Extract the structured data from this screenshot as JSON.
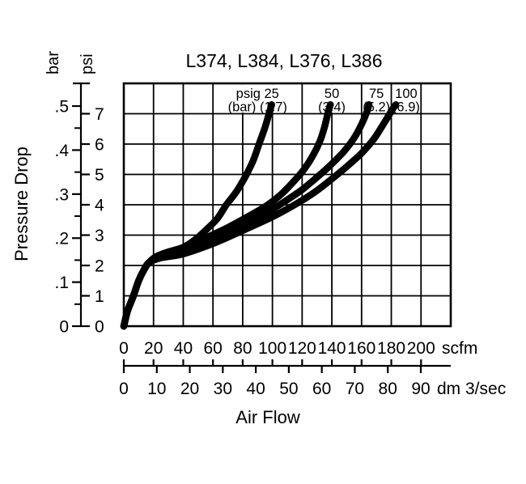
{
  "chart_data": {
    "type": "line",
    "title": "L374, L384, L376, L386",
    "x_axis": {
      "label": "Air Flow",
      "scales": [
        {
          "unit": "scfm",
          "ticks": [
            0,
            20,
            40,
            60,
            80,
            100,
            120,
            140,
            160,
            180,
            200
          ],
          "axis_max": 220
        },
        {
          "unit": "dm 3/sec",
          "ticks": [
            0,
            10,
            20,
            30,
            40,
            50,
            60,
            70,
            80,
            90
          ]
        }
      ]
    },
    "y_axis": {
      "label": "Pressure Drop",
      "scales": [
        {
          "unit": "bar",
          "tick_labels": [
            "0",
            ".1",
            ".2",
            ".3",
            ".4",
            ".5"
          ],
          "tick_values": [
            0,
            0.1,
            0.2,
            0.3,
            0.4,
            0.5
          ],
          "minor_tick_values": [
            0.05,
            0.15,
            0.25,
            0.35,
            0.45
          ],
          "axis_max": 0.55
        },
        {
          "unit": "psi",
          "tick_labels": [
            "0",
            "1",
            "2",
            "3",
            "4",
            "5",
            "6",
            "7"
          ],
          "tick_values": [
            0,
            1,
            2,
            3,
            4,
            5,
            6,
            7
          ],
          "axis_max": 8
        }
      ]
    },
    "legend": {
      "cells": [
        {
          "line1": "psig 25",
          "line2": "(bar) (1.7)",
          "span_scfm": [
            60,
            120
          ]
        },
        {
          "line1": "50",
          "line2": "(3.4)",
          "span_scfm": [
            120,
            160
          ]
        },
        {
          "line1": "75",
          "line2": "(5.2)",
          "span_scfm": [
            160,
            180
          ]
        },
        {
          "line1": "100",
          "line2": "(6.9)",
          "span_scfm": [
            180,
            200
          ]
        }
      ]
    },
    "common_trunk_points_scfm_psi": [
      [
        0,
        0
      ],
      [
        2.5,
        0.5
      ],
      [
        6.5,
        1.0
      ],
      [
        10,
        1.5
      ],
      [
        13.5,
        1.85
      ],
      [
        17,
        2.1
      ]
    ],
    "series": [
      {
        "name": "25 psig (1.7 bar) inlet",
        "points_scfm_psi": [
          [
            22,
            2.3
          ],
          [
            30,
            2.45
          ],
          [
            40,
            2.6
          ],
          [
            48,
            2.85
          ],
          [
            56,
            3.2
          ],
          [
            63,
            3.55
          ],
          [
            69,
            4.0
          ],
          [
            76,
            4.45
          ],
          [
            82,
            4.95
          ],
          [
            87,
            5.45
          ],
          [
            91,
            6.0
          ],
          [
            95,
            6.55
          ],
          [
            98,
            7.05
          ],
          [
            99.5,
            7.3
          ]
        ]
      },
      {
        "name": "50 psig (3.4 bar) inlet",
        "points_scfm_psi": [
          [
            25,
            2.3
          ],
          [
            40,
            2.5
          ],
          [
            55,
            2.9
          ],
          [
            70,
            3.25
          ],
          [
            85,
            3.65
          ],
          [
            97,
            4.0
          ],
          [
            106,
            4.35
          ],
          [
            114,
            4.75
          ],
          [
            121,
            5.15
          ],
          [
            127,
            5.6
          ],
          [
            132,
            6.1
          ],
          [
            135,
            6.55
          ],
          [
            137.5,
            7.05
          ],
          [
            139,
            7.3
          ]
        ]
      },
      {
        "name": "75 psig (5.2 bar) inlet",
        "points_scfm_psi": [
          [
            25,
            2.28
          ],
          [
            40,
            2.44
          ],
          [
            60,
            2.85
          ],
          [
            80,
            3.35
          ],
          [
            95,
            3.7
          ],
          [
            108,
            4.1
          ],
          [
            120,
            4.5
          ],
          [
            131,
            4.95
          ],
          [
            140,
            5.35
          ],
          [
            148,
            5.75
          ],
          [
            155,
            6.2
          ],
          [
            160,
            6.65
          ],
          [
            163.5,
            7.05
          ],
          [
            165,
            7.3
          ]
        ]
      },
      {
        "name": "100 psig (6.9 bar) inlet",
        "points_scfm_psi": [
          [
            25,
            2.25
          ],
          [
            40,
            2.38
          ],
          [
            60,
            2.72
          ],
          [
            80,
            3.15
          ],
          [
            100,
            3.6
          ],
          [
            115,
            4.0
          ],
          [
            128,
            4.4
          ],
          [
            140,
            4.85
          ],
          [
            151,
            5.3
          ],
          [
            160,
            5.7
          ],
          [
            168,
            6.15
          ],
          [
            174,
            6.6
          ],
          [
            179,
            7.0
          ],
          [
            181.5,
            7.2
          ],
          [
            183,
            7.3
          ]
        ]
      }
    ],
    "grid": {
      "x_step_scfm": 20,
      "y_step_psi": 1,
      "x_range_scfm": [
        0,
        220
      ],
      "y_range_psi": [
        0,
        8
      ],
      "grid_on": true
    },
    "colors": {
      "line": "#000000",
      "grid": "#000000",
      "background": "#ffffff"
    }
  }
}
